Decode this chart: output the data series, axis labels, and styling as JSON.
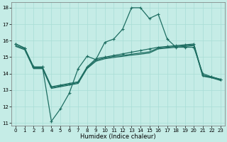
{
  "xlabel": "Humidex (Indice chaleur)",
  "bg_color": "#c5ece6",
  "grid_color": "#a8ddd5",
  "line_color": "#1e6e62",
  "xlim_min": -0.5,
  "xlim_max": 23.5,
  "ylim_min": 10.85,
  "ylim_max": 18.35,
  "xticks": [
    0,
    1,
    2,
    3,
    4,
    5,
    6,
    7,
    8,
    9,
    10,
    11,
    12,
    13,
    14,
    15,
    16,
    17,
    18,
    19,
    20,
    21,
    22,
    23
  ],
  "yticks": [
    11,
    12,
    13,
    14,
    15,
    16,
    17,
    18
  ],
  "line1": {
    "x": [
      0,
      1,
      2,
      3,
      4,
      5,
      6,
      7,
      8,
      9,
      10,
      11,
      12,
      13,
      14,
      15,
      16,
      17,
      18,
      19,
      20,
      21,
      22,
      23
    ],
    "y": [
      15.8,
      15.55,
      14.4,
      14.4,
      13.2,
      13.3,
      13.4,
      13.5,
      14.4,
      14.9,
      15.0,
      15.1,
      15.2,
      15.3,
      15.4,
      15.5,
      15.6,
      15.65,
      15.7,
      15.75,
      15.8,
      13.9,
      13.8,
      13.65
    ],
    "marker": true
  },
  "line2": {
    "x": [
      0,
      1,
      2,
      3,
      4,
      5,
      6,
      7,
      8,
      9,
      10,
      11,
      12,
      13,
      14,
      15,
      16,
      17,
      18,
      19,
      20,
      21,
      22,
      23
    ],
    "y": [
      15.8,
      15.55,
      14.4,
      14.4,
      11.1,
      11.85,
      12.8,
      14.3,
      15.05,
      14.85,
      15.9,
      16.1,
      16.7,
      18.0,
      18.0,
      17.35,
      17.6,
      16.1,
      15.6,
      15.6,
      15.6,
      14.0,
      13.8,
      13.65
    ],
    "marker": true
  },
  "line3": {
    "x": [
      0,
      1,
      2,
      3,
      4,
      5,
      6,
      7,
      8,
      9,
      10,
      11,
      12,
      13,
      14,
      15,
      16,
      17,
      18,
      19,
      20,
      21,
      22,
      23
    ],
    "y": [
      15.7,
      15.5,
      14.35,
      14.35,
      13.15,
      13.25,
      13.35,
      13.45,
      14.35,
      14.82,
      14.95,
      15.05,
      15.1,
      15.18,
      15.25,
      15.32,
      15.55,
      15.6,
      15.65,
      15.7,
      15.75,
      13.87,
      13.77,
      13.62
    ],
    "marker": false
  },
  "line4": {
    "x": [
      0,
      1,
      2,
      3,
      4,
      5,
      6,
      7,
      8,
      9,
      10,
      11,
      12,
      13,
      14,
      15,
      16,
      17,
      18,
      19,
      20,
      21,
      22,
      23
    ],
    "y": [
      15.65,
      15.45,
      14.3,
      14.3,
      13.1,
      13.2,
      13.3,
      13.4,
      14.3,
      14.75,
      14.9,
      14.98,
      15.05,
      15.12,
      15.18,
      15.25,
      15.5,
      15.55,
      15.6,
      15.65,
      15.7,
      13.84,
      13.74,
      13.58
    ],
    "marker": false
  }
}
